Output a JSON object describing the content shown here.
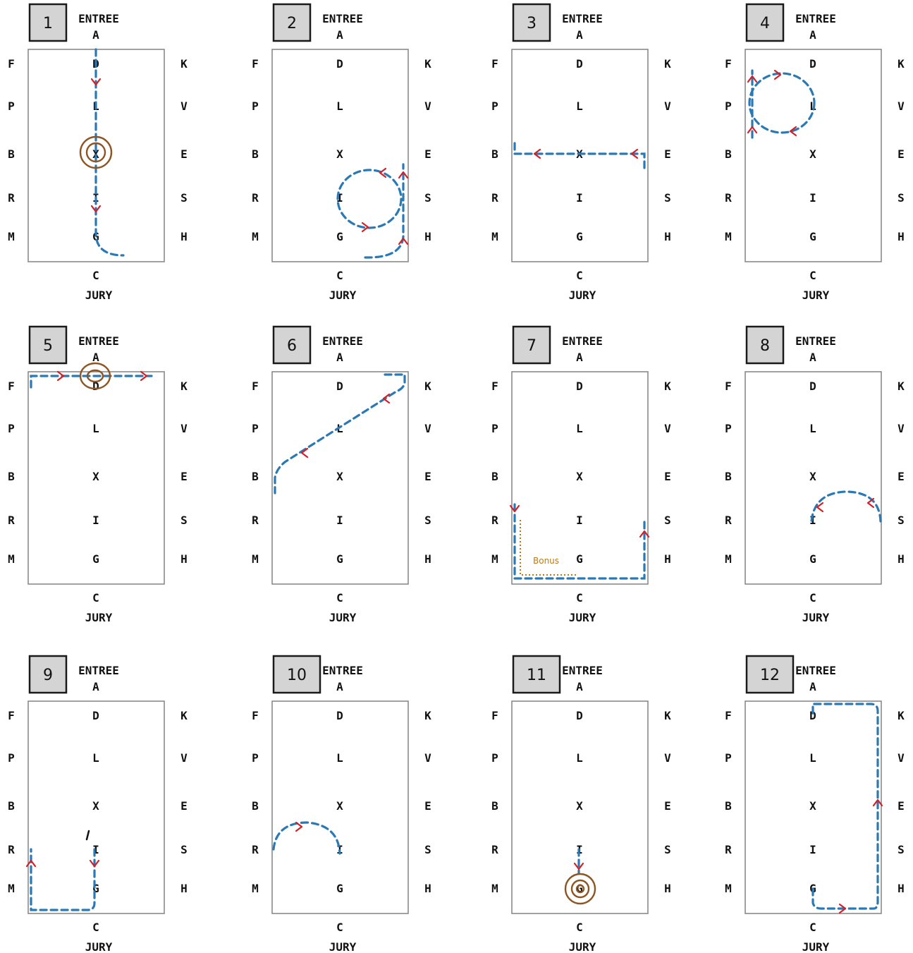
{
  "labels": {
    "entree": "ENTREE",
    "jury": "JURY",
    "top": "A",
    "bottom": "C",
    "left": [
      "F",
      "P",
      "B",
      "R",
      "M"
    ],
    "center": [
      "D",
      "L",
      "X",
      "I",
      "G"
    ],
    "right": [
      "K",
      "V",
      "E",
      "S",
      "H"
    ]
  },
  "colors": {
    "path": "#2a79b5",
    "arrow": "#d51f26",
    "circle": "#8e5522",
    "bonus": "#c17a10"
  },
  "figures": [
    {
      "number": "1"
    },
    {
      "number": "2"
    },
    {
      "number": "3"
    },
    {
      "number": "4"
    },
    {
      "number": "5"
    },
    {
      "number": "6"
    },
    {
      "number": "7",
      "note": "Bonus"
    },
    {
      "number": "8"
    },
    {
      "number": "9"
    },
    {
      "number": "10"
    },
    {
      "number": "11"
    },
    {
      "number": "12"
    }
  ]
}
